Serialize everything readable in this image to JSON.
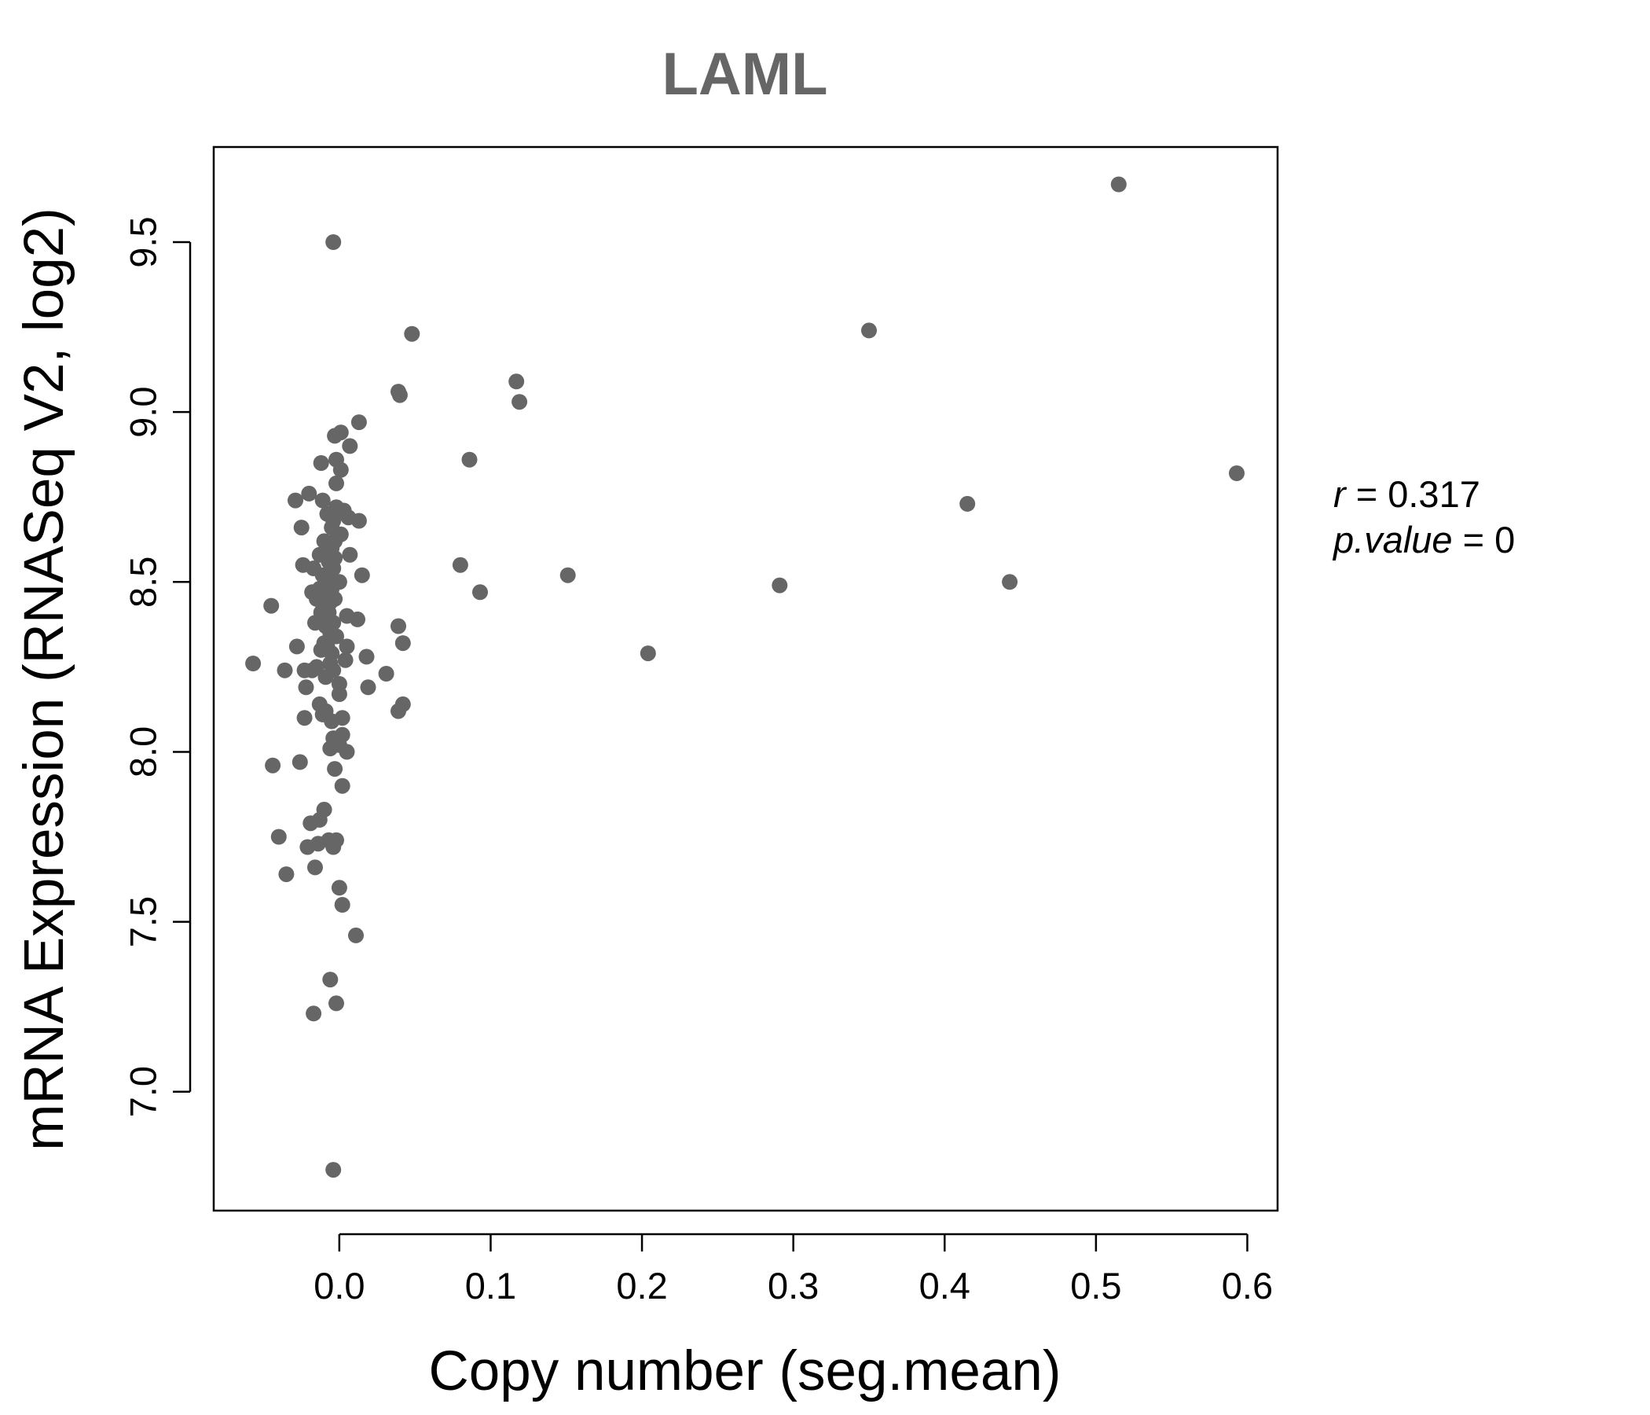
{
  "chart_data": {
    "type": "scatter",
    "title": "LAML",
    "xlabel": "Copy number (seg.mean)",
    "ylabel": "mRNA Expression (RNASeq V2, log2)",
    "xlim": [
      -0.083,
      0.62
    ],
    "ylim": [
      6.65,
      9.78
    ],
    "xticks": [
      0.0,
      0.1,
      0.2,
      0.3,
      0.4,
      0.5,
      0.6
    ],
    "xtick_labels": [
      "0.0",
      "0.1",
      "0.2",
      "0.3",
      "0.4",
      "0.5",
      "0.6"
    ],
    "yticks": [
      7.0,
      7.5,
      8.0,
      8.5,
      9.0,
      9.5
    ],
    "ytick_labels": [
      "7.0",
      "7.5",
      "8.0",
      "8.5",
      "9.0",
      "9.5"
    ],
    "grid": false,
    "marker_color": "#666666",
    "annotation": {
      "r_label": "r",
      "r_value": "0.317",
      "p_label": "p.value",
      "p_value": "0"
    },
    "points": [
      [
        0.515,
        9.67
      ],
      [
        0.593,
        8.82
      ],
      [
        0.35,
        9.24
      ],
      [
        0.415,
        8.73
      ],
      [
        0.443,
        8.5
      ],
      [
        0.291,
        8.49
      ],
      [
        0.204,
        8.29
      ],
      [
        0.151,
        8.52
      ],
      [
        0.117,
        9.09
      ],
      [
        0.119,
        9.03
      ],
      [
        0.086,
        8.86
      ],
      [
        0.093,
        8.47
      ],
      [
        0.08,
        8.55
      ],
      [
        0.048,
        9.23
      ],
      [
        0.039,
        9.06
      ],
      [
        0.04,
        9.05
      ],
      [
        0.039,
        8.37
      ],
      [
        0.042,
        8.32
      ],
      [
        0.042,
        8.14
      ],
      [
        0.039,
        8.12
      ],
      [
        0.031,
        8.23
      ],
      [
        0.018,
        8.28
      ],
      [
        0.019,
        8.19
      ],
      [
        0.015,
        8.52
      ],
      [
        0.013,
        8.97
      ],
      [
        0.013,
        8.68
      ],
      [
        0.012,
        8.39
      ],
      [
        0.011,
        7.46
      ],
      [
        0.007,
        8.9
      ],
      [
        0.007,
        8.58
      ],
      [
        0.006,
        8.69
      ],
      [
        0.005,
        8.31
      ],
      [
        0.005,
        8.4
      ],
      [
        0.005,
        8.0
      ],
      [
        0.004,
        8.27
      ],
      [
        0.003,
        8.71
      ],
      [
        0.002,
        8.1
      ],
      [
        0.002,
        8.05
      ],
      [
        0.002,
        7.9
      ],
      [
        0.002,
        7.55
      ],
      [
        0.001,
        8.94
      ],
      [
        0.001,
        8.83
      ],
      [
        0.001,
        8.64
      ],
      [
        0.0,
        8.5
      ],
      [
        0.0,
        8.2
      ],
      [
        0.0,
        8.17
      ],
      [
        0.0,
        8.02
      ],
      [
        0.0,
        7.6
      ],
      [
        -0.002,
        8.86
      ],
      [
        -0.002,
        8.79
      ],
      [
        -0.002,
        8.72
      ],
      [
        -0.002,
        8.34
      ],
      [
        -0.002,
        7.74
      ],
      [
        -0.002,
        7.26
      ],
      [
        -0.003,
        8.93
      ],
      [
        -0.003,
        8.62
      ],
      [
        -0.003,
        8.57
      ],
      [
        -0.003,
        8.45
      ],
      [
        -0.003,
        7.95
      ],
      [
        -0.004,
        9.5
      ],
      [
        -0.004,
        8.68
      ],
      [
        -0.004,
        8.54
      ],
      [
        -0.004,
        8.38
      ],
      [
        -0.004,
        8.24
      ],
      [
        -0.004,
        8.04
      ],
      [
        -0.004,
        7.72
      ],
      [
        -0.004,
        6.77
      ],
      [
        -0.005,
        8.66
      ],
      [
        -0.005,
        8.6
      ],
      [
        -0.005,
        8.48
      ],
      [
        -0.005,
        8.29
      ],
      [
        -0.005,
        8.09
      ],
      [
        -0.006,
        8.44
      ],
      [
        -0.006,
        8.35
      ],
      [
        -0.006,
        8.26
      ],
      [
        -0.006,
        8.01
      ],
      [
        -0.006,
        7.33
      ],
      [
        -0.007,
        8.56
      ],
      [
        -0.007,
        8.41
      ],
      [
        -0.007,
        7.74
      ],
      [
        -0.008,
        8.7
      ],
      [
        -0.008,
        8.61
      ],
      [
        -0.008,
        8.51
      ],
      [
        -0.008,
        8.31
      ],
      [
        -0.009,
        8.43
      ],
      [
        -0.009,
        8.37
      ],
      [
        -0.009,
        8.22
      ],
      [
        -0.009,
        8.12
      ],
      [
        -0.01,
        8.62
      ],
      [
        -0.01,
        8.46
      ],
      [
        -0.01,
        8.32
      ],
      [
        -0.01,
        7.83
      ],
      [
        -0.011,
        8.74
      ],
      [
        -0.011,
        8.52
      ],
      [
        -0.011,
        8.11
      ],
      [
        -0.012,
        8.85
      ],
      [
        -0.012,
        8.41
      ],
      [
        -0.012,
        8.3
      ],
      [
        -0.013,
        8.58
      ],
      [
        -0.013,
        8.48
      ],
      [
        -0.013,
        8.14
      ],
      [
        -0.013,
        7.8
      ],
      [
        -0.014,
        7.73
      ],
      [
        -0.015,
        8.45
      ],
      [
        -0.015,
        8.25
      ],
      [
        -0.016,
        8.38
      ],
      [
        -0.016,
        7.66
      ],
      [
        -0.017,
        8.54
      ],
      [
        -0.017,
        7.23
      ],
      [
        -0.018,
        8.47
      ],
      [
        -0.018,
        8.24
      ],
      [
        -0.019,
        7.79
      ],
      [
        -0.02,
        8.76
      ],
      [
        -0.021,
        7.72
      ],
      [
        -0.022,
        8.19
      ],
      [
        -0.023,
        8.24
      ],
      [
        -0.023,
        8.1
      ],
      [
        -0.024,
        8.55
      ],
      [
        -0.025,
        8.66
      ],
      [
        -0.026,
        7.97
      ],
      [
        -0.028,
        8.31
      ],
      [
        -0.029,
        8.74
      ],
      [
        -0.035,
        7.64
      ],
      [
        -0.036,
        8.24
      ],
      [
        -0.04,
        7.75
      ],
      [
        -0.044,
        7.96
      ],
      [
        -0.045,
        8.43
      ],
      [
        -0.057,
        8.26
      ]
    ]
  }
}
